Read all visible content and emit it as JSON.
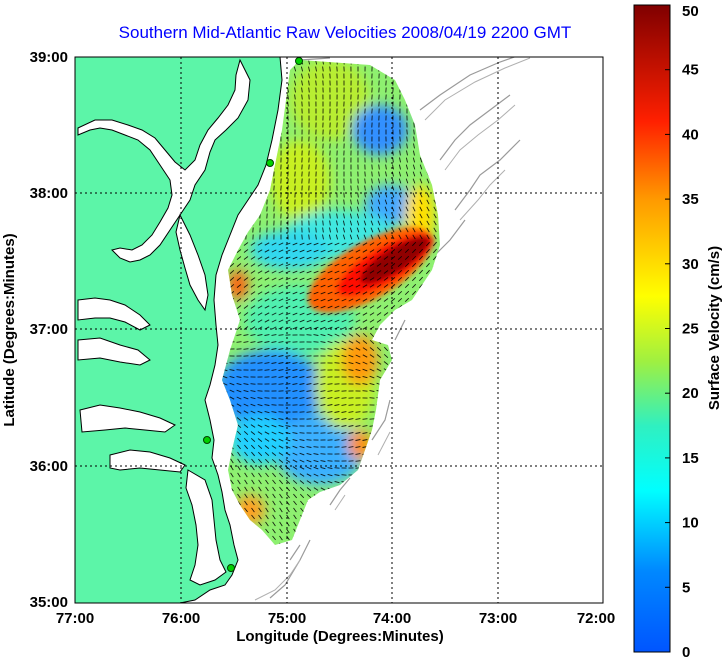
{
  "title": "Southern Mid-Atlantic Raw Velocities 2008/04/19 2200 GMT",
  "xlabel": "Longitude (Degrees:Minutes)",
  "ylabel": "Latitude (Degrees:Minutes)",
  "x_ticks": [
    "77:00",
    "76:00",
    "75:00",
    "74:00",
    "73:00",
    "72:00"
  ],
  "y_ticks": [
    "39:00",
    "38:00",
    "37:00",
    "36:00",
    "35:00"
  ],
  "colorbar": {
    "label": "Surface Velocity (cm/s)",
    "min": 0,
    "max": 50,
    "ticks": [
      "0",
      "5",
      "10",
      "15",
      "20",
      "25",
      "30",
      "35",
      "40",
      "45",
      "50"
    ],
    "colormap": "jet"
  },
  "colors": {
    "land": "#5cf5a8",
    "coast": "#000000",
    "bathymetry": "#9a9a9a",
    "grid": "#000000",
    "station": "#00d000"
  },
  "chart_data": {
    "type": "heatmap",
    "title": "Southern Mid-Atlantic Raw Velocities 2008/04/19 2200 GMT",
    "xlabel": "Longitude (Degrees:Minutes)",
    "ylabel": "Latitude (Degrees:Minutes)",
    "xlim": [
      -77,
      -72
    ],
    "ylim": [
      35,
      39
    ],
    "grid": true,
    "value_label": "Surface Velocity (cm/s)",
    "value_range": [
      0,
      50
    ],
    "regions": [
      {
        "lon": -74.4,
        "lat": 37.4,
        "speed": 48
      },
      {
        "lon": -74.15,
        "lat": 37.55,
        "speed": 45
      },
      {
        "lon": -74.6,
        "lat": 37.25,
        "speed": 38
      },
      {
        "lon": -74.3,
        "lat": 36.7,
        "speed": 35
      },
      {
        "lon": -74.1,
        "lat": 36.2,
        "speed": 33
      },
      {
        "lon": -75.2,
        "lat": 35.7,
        "speed": 30
      },
      {
        "lon": -75.5,
        "lat": 37.3,
        "speed": 32
      },
      {
        "lon": -74.9,
        "lat": 38.5,
        "speed": 24
      },
      {
        "lon": -75.0,
        "lat": 38.0,
        "speed": 18
      },
      {
        "lon": -74.2,
        "lat": 38.6,
        "speed": 6
      },
      {
        "lon": -74.1,
        "lat": 37.95,
        "speed": 8
      },
      {
        "lon": -75.3,
        "lat": 36.6,
        "speed": 8
      },
      {
        "lon": -74.9,
        "lat": 36.2,
        "speed": 6
      },
      {
        "lon": -75.4,
        "lat": 36.9,
        "speed": 14
      },
      {
        "lon": -74.5,
        "lat": 36.8,
        "speed": 24
      }
    ],
    "stations": [
      {
        "lon": -74.95,
        "lat": 39.0
      },
      {
        "lon": -75.15,
        "lat": 38.2
      },
      {
        "lon": -75.75,
        "lat": 36.2
      },
      {
        "lon": -75.55,
        "lat": 35.25
      }
    ]
  }
}
